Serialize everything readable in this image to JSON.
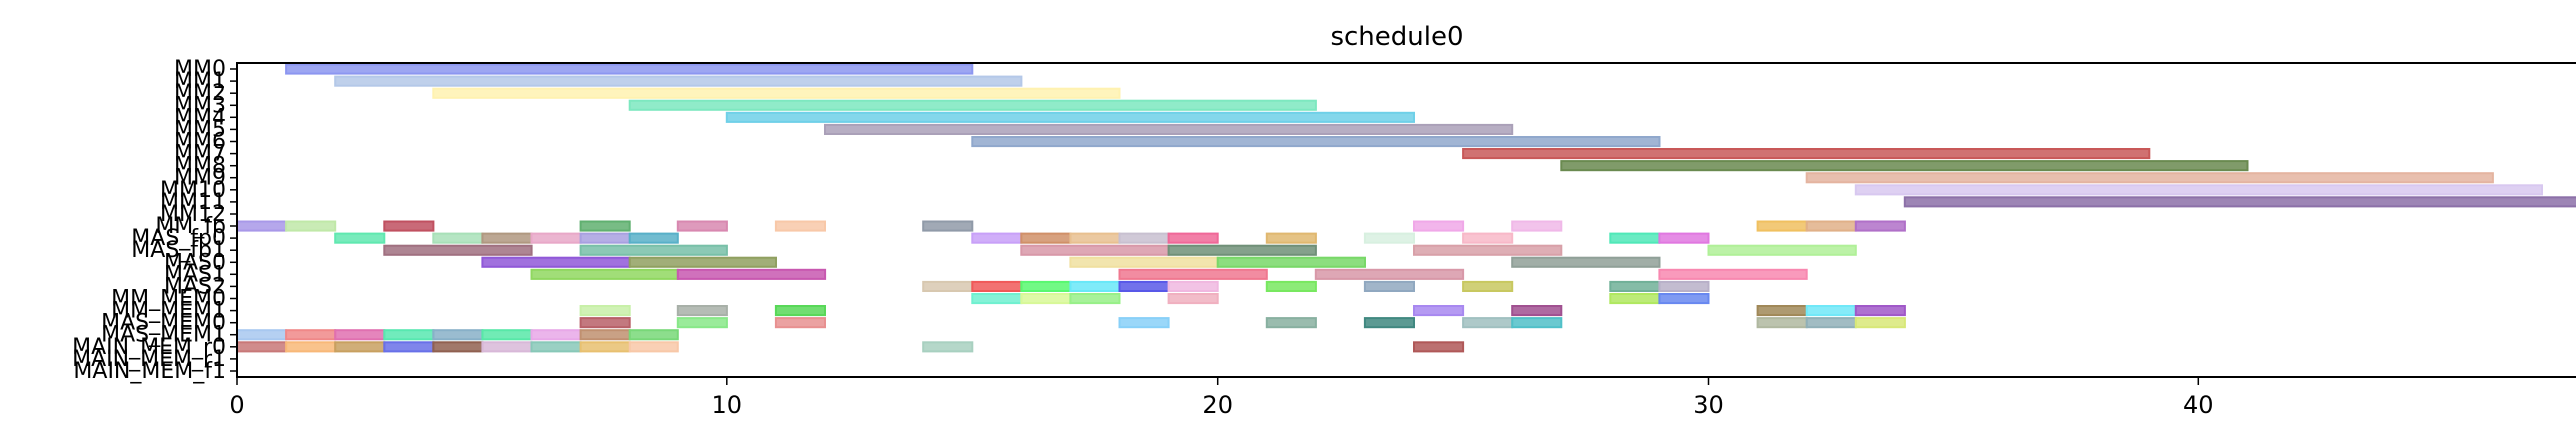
{
  "chart_data": {
    "type": "gantt",
    "title": "schedule0",
    "xlabel": "",
    "ylabel": "",
    "xlim": [
      0,
      48
    ],
    "xticks": [
      0,
      10,
      20,
      30,
      40
    ],
    "grid": false,
    "rows": [
      "MM0",
      "MM1",
      "MM2",
      "MM3",
      "MM4",
      "MM5",
      "MM6",
      "MM7",
      "MM8",
      "MM9",
      "MM10",
      "MM11",
      "MM12",
      "MM_fp",
      "MAS_fp0",
      "MAS_fp1",
      "MAS0",
      "MAS1",
      "MAS2",
      "MM_MEM0",
      "MM_MEM1",
      "MAS_MEM0",
      "MAS_MEM1",
      "MAIN_MEM_r0",
      "MAIN_MEM_r1",
      "MAIN_MEM_f1"
    ],
    "ytick_labels_visible": [
      "MM0",
      "MM_fp",
      "MAS_fp0",
      "MAS0",
      "MAS1",
      "MAS2",
      "MM_MEM0",
      "MM_MEM1",
      "MAS_MEM0",
      "MAS_MEM1",
      "MAIN_MEM_r0",
      "MAIN_MEM_r1"
    ],
    "tasks": [
      {
        "row": 0,
        "start": 1,
        "end": 15,
        "color": "#8c96f0"
      },
      {
        "row": 1,
        "start": 2,
        "end": 16,
        "color": "#b4c8e8"
      },
      {
        "row": 2,
        "start": 4,
        "end": 18,
        "color": "#fff2b0"
      },
      {
        "row": 3,
        "start": 8,
        "end": 22,
        "color": "#7de8c0"
      },
      {
        "row": 4,
        "start": 10,
        "end": 24,
        "color": "#6fd0e8"
      },
      {
        "row": 5,
        "start": 12,
        "end": 26,
        "color": "#aaa0b8"
      },
      {
        "row": 6,
        "start": 15,
        "end": 29,
        "color": "#90a8cc"
      },
      {
        "row": 7,
        "start": 25,
        "end": 39,
        "color": "#c85858"
      },
      {
        "row": 8,
        "start": 27,
        "end": 41,
        "color": "#6a8a50"
      },
      {
        "row": 9,
        "start": 32,
        "end": 46,
        "color": "#e4b4a0"
      },
      {
        "row": 10,
        "start": 33,
        "end": 47,
        "color": "#d8c8f0"
      },
      {
        "row": 11,
        "start": 34,
        "end": 48,
        "color": "#8c70a8"
      },
      {
        "row": 13,
        "start": 0,
        "end": 1,
        "color": "#a898e8"
      },
      {
        "row": 13,
        "start": 1,
        "end": 2,
        "color": "#c0e8a8"
      },
      {
        "row": 13,
        "start": 3,
        "end": 4,
        "color": "#c05060"
      },
      {
        "row": 13,
        "start": 7,
        "end": 8,
        "color": "#60b070"
      },
      {
        "row": 13,
        "start": 9,
        "end": 10,
        "color": "#d888b0"
      },
      {
        "row": 13,
        "start": 11,
        "end": 12,
        "color": "#f8c8a8"
      },
      {
        "row": 13,
        "start": 14,
        "end": 15,
        "color": "#909aa8"
      },
      {
        "row": 13,
        "start": 24,
        "end": 25,
        "color": "#f0a8e8"
      },
      {
        "row": 13,
        "start": 26,
        "end": 27,
        "color": "#f0b8e8"
      },
      {
        "row": 13,
        "start": 31,
        "end": 32,
        "color": "#f0c060"
      },
      {
        "row": 13,
        "start": 32,
        "end": 33,
        "color": "#e0b088"
      },
      {
        "row": 13,
        "start": 33,
        "end": 34,
        "color": "#b070c8"
      },
      {
        "row": 14,
        "start": 2,
        "end": 3,
        "color": "#60e8b0"
      },
      {
        "row": 14,
        "start": 4,
        "end": 5,
        "color": "#a8e0b8"
      },
      {
        "row": 14,
        "start": 5,
        "end": 6,
        "color": "#b09880"
      },
      {
        "row": 14,
        "start": 6,
        "end": 7,
        "color": "#e8a8c8"
      },
      {
        "row": 14,
        "start": 7,
        "end": 8,
        "color": "#a8a0e0"
      },
      {
        "row": 14,
        "start": 8,
        "end": 9,
        "color": "#58b0c8"
      },
      {
        "row": 14,
        "start": 15,
        "end": 16,
        "color": "#c8a0f8"
      },
      {
        "row": 14,
        "start": 16,
        "end": 17,
        "color": "#d09068"
      },
      {
        "row": 14,
        "start": 17,
        "end": 18,
        "color": "#e8c090"
      },
      {
        "row": 14,
        "start": 18,
        "end": 19,
        "color": "#c8c0d0"
      },
      {
        "row": 14,
        "start": 19,
        "end": 20,
        "color": "#f06898"
      },
      {
        "row": 14,
        "start": 21,
        "end": 22,
        "color": "#e0b870"
      },
      {
        "row": 14,
        "start": 23,
        "end": 24,
        "color": "#d8f0e0"
      },
      {
        "row": 14,
        "start": 25,
        "end": 26,
        "color": "#f8b8c8"
      },
      {
        "row": 14,
        "start": 28,
        "end": 29,
        "color": "#50e8b8"
      },
      {
        "row": 14,
        "start": 29,
        "end": 30,
        "color": "#e078e0"
      },
      {
        "row": 15,
        "start": 3,
        "end": 6,
        "color": "#a07080"
      },
      {
        "row": 15,
        "start": 7,
        "end": 10,
        "color": "#78c0a8"
      },
      {
        "row": 15,
        "start": 16,
        "end": 19,
        "color": "#d898a8"
      },
      {
        "row": 15,
        "start": 19,
        "end": 22,
        "color": "#709078"
      },
      {
        "row": 15,
        "start": 24,
        "end": 27,
        "color": "#d8a0a8"
      },
      {
        "row": 15,
        "start": 30,
        "end": 33,
        "color": "#b0f098"
      },
      {
        "row": 16,
        "start": 5,
        "end": 8,
        "color": "#9058d8"
      },
      {
        "row": 16,
        "start": 8,
        "end": 11,
        "color": "#90a060"
      },
      {
        "row": 16,
        "start": 17,
        "end": 20,
        "color": "#f0e0a0"
      },
      {
        "row": 16,
        "start": 20,
        "end": 23,
        "color": "#78d868"
      },
      {
        "row": 16,
        "start": 26,
        "end": 29,
        "color": "#90a098"
      },
      {
        "row": 17,
        "start": 6,
        "end": 9,
        "color": "#90d860"
      },
      {
        "row": 17,
        "start": 9,
        "end": 12,
        "color": "#c858b0"
      },
      {
        "row": 17,
        "start": 18,
        "end": 21,
        "color": "#f07890"
      },
      {
        "row": 17,
        "start": 22,
        "end": 25,
        "color": "#d898a8"
      },
      {
        "row": 17,
        "start": 29,
        "end": 32,
        "color": "#f888b0"
      },
      {
        "row": 18,
        "start": 14,
        "end": 15,
        "color": "#d8c8b0"
      },
      {
        "row": 18,
        "start": 15,
        "end": 16,
        "color": "#f05858"
      },
      {
        "row": 18,
        "start": 16,
        "end": 17,
        "color": "#58f870"
      },
      {
        "row": 18,
        "start": 17,
        "end": 18,
        "color": "#68e8f8"
      },
      {
        "row": 18,
        "start": 18,
        "end": 19,
        "color": "#5858e8"
      },
      {
        "row": 18,
        "start": 19,
        "end": 20,
        "color": "#f0b8e0"
      },
      {
        "row": 18,
        "start": 21,
        "end": 22,
        "color": "#78e860"
      },
      {
        "row": 18,
        "start": 23,
        "end": 24,
        "color": "#90a8c0"
      },
      {
        "row": 18,
        "start": 25,
        "end": 26,
        "color": "#c8c860"
      },
      {
        "row": 18,
        "start": 28,
        "end": 29,
        "color": "#70b098"
      },
      {
        "row": 18,
        "start": 29,
        "end": 30,
        "color": "#b8b0c8"
      },
      {
        "row": 19,
        "start": 15,
        "end": 16,
        "color": "#70f0d0"
      },
      {
        "row": 19,
        "start": 16,
        "end": 17,
        "color": "#d8f898"
      },
      {
        "row": 19,
        "start": 17,
        "end": 18,
        "color": "#98f088"
      },
      {
        "row": 19,
        "start": 19,
        "end": 20,
        "color": "#f0b0c0"
      },
      {
        "row": 19,
        "start": 28,
        "end": 29,
        "color": "#b0e860"
      },
      {
        "row": 19,
        "start": 29,
        "end": 30,
        "color": "#6888f0"
      },
      {
        "row": 20,
        "start": 7,
        "end": 8,
        "color": "#c8f0a8"
      },
      {
        "row": 20,
        "start": 9,
        "end": 10,
        "color": "#a8b0a8"
      },
      {
        "row": 20,
        "start": 11,
        "end": 12,
        "color": "#58d858"
      },
      {
        "row": 20,
        "start": 24,
        "end": 25,
        "color": "#a888f0"
      },
      {
        "row": 20,
        "start": 26,
        "end": 27,
        "color": "#a05090"
      },
      {
        "row": 20,
        "start": 31,
        "end": 32,
        "color": "#a08858"
      },
      {
        "row": 20,
        "start": 32,
        "end": 33,
        "color": "#70e8f8"
      },
      {
        "row": 20,
        "start": 33,
        "end": 34,
        "color": "#a058c8"
      },
      {
        "row": 21,
        "start": 7,
        "end": 8,
        "color": "#b86068"
      },
      {
        "row": 21,
        "start": 9,
        "end": 10,
        "color": "#88e888"
      },
      {
        "row": 21,
        "start": 11,
        "end": 12,
        "color": "#e89090"
      },
      {
        "row": 21,
        "start": 18,
        "end": 19,
        "color": "#88d0f8"
      },
      {
        "row": 21,
        "start": 21,
        "end": 22,
        "color": "#88b0a0"
      },
      {
        "row": 21,
        "start": 23,
        "end": 24,
        "color": "#408880"
      },
      {
        "row": 21,
        "start": 25,
        "end": 26,
        "color": "#a0c0c0"
      },
      {
        "row": 21,
        "start": 26,
        "end": 27,
        "color": "#50c0c8"
      },
      {
        "row": 21,
        "start": 31,
        "end": 32,
        "color": "#b0b8a0"
      },
      {
        "row": 21,
        "start": 32,
        "end": 33,
        "color": "#90b0b8"
      },
      {
        "row": 21,
        "start": 33,
        "end": 34,
        "color": "#d8e878"
      },
      {
        "row": 22,
        "start": 0,
        "end": 1,
        "color": "#a8c8f0"
      },
      {
        "row": 22,
        "start": 1,
        "end": 2,
        "color": "#f08888"
      },
      {
        "row": 22,
        "start": 2,
        "end": 3,
        "color": "#e070b0"
      },
      {
        "row": 22,
        "start": 3,
        "end": 4,
        "color": "#58e8b0"
      },
      {
        "row": 22,
        "start": 4,
        "end": 5,
        "color": "#88b0c8"
      },
      {
        "row": 22,
        "start": 5,
        "end": 6,
        "color": "#58e8a8"
      },
      {
        "row": 22,
        "start": 6,
        "end": 7,
        "color": "#e8a8e8"
      },
      {
        "row": 22,
        "start": 7,
        "end": 8,
        "color": "#c09070"
      },
      {
        "row": 22,
        "start": 8,
        "end": 9,
        "color": "#78d878"
      },
      {
        "row": 23,
        "start": 0,
        "end": 1,
        "color": "#c87878"
      },
      {
        "row": 23,
        "start": 1,
        "end": 2,
        "color": "#f8b878"
      },
      {
        "row": 23,
        "start": 2,
        "end": 3,
        "color": "#c8a060"
      },
      {
        "row": 23,
        "start": 3,
        "end": 4,
        "color": "#6870e8"
      },
      {
        "row": 23,
        "start": 4,
        "end": 5,
        "color": "#906050"
      },
      {
        "row": 23,
        "start": 5,
        "end": 6,
        "color": "#d8b8d8"
      },
      {
        "row": 23,
        "start": 6,
        "end": 7,
        "color": "#88c8b8"
      },
      {
        "row": 23,
        "start": 7,
        "end": 8,
        "color": "#e8c070"
      },
      {
        "row": 23,
        "start": 8,
        "end": 9,
        "color": "#f8c8a8"
      },
      {
        "row": 23,
        "start": 14,
        "end": 15,
        "color": "#a8d0c0"
      },
      {
        "row": 23,
        "start": 24,
        "end": 25,
        "color": "#b05858"
      }
    ]
  }
}
